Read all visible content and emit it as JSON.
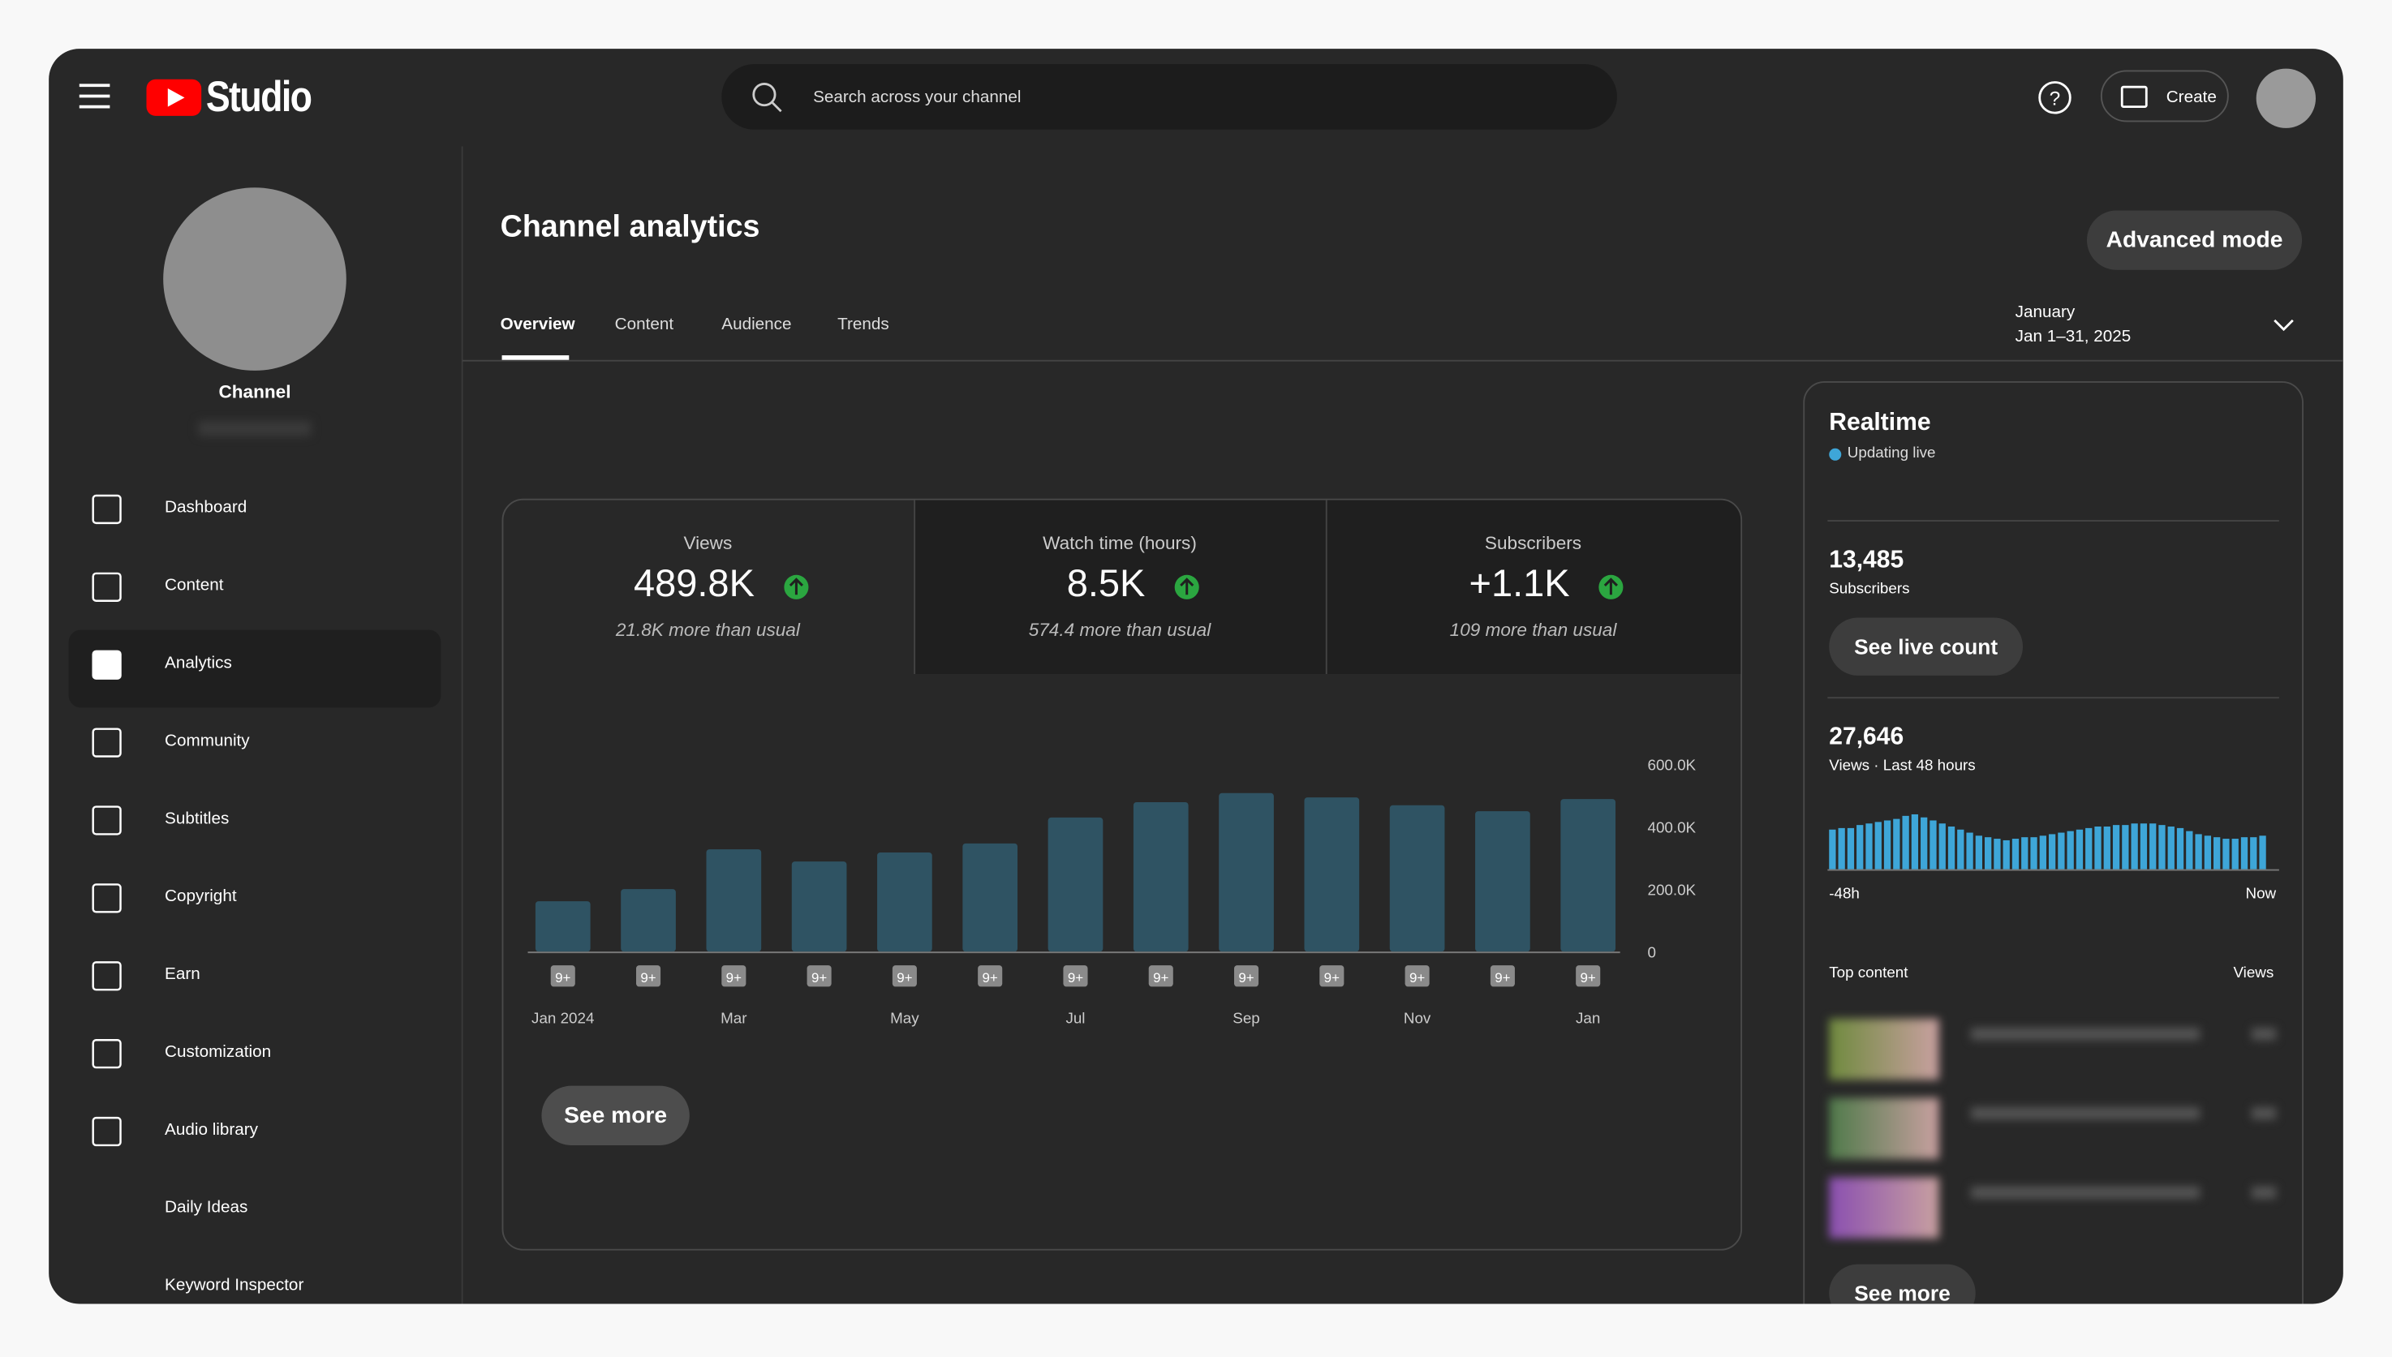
{
  "header": {
    "logo": "Studio",
    "search": "Search across your channel",
    "create": "Create"
  },
  "sidebar": {
    "channel": "Channel",
    "items": [
      "Dashboard",
      "Content",
      "Analytics",
      "Community",
      "Subtitles",
      "Copyright",
      "Earn",
      "Customization",
      "Audio library",
      "Daily Ideas",
      "Keyword Inspector"
    ]
  },
  "page": {
    "title": "Channel analytics",
    "advanced": "Advanced mode",
    "tabs": [
      "Overview",
      "Content",
      "Audience",
      "Trends"
    ],
    "period": {
      "label": "January",
      "range": "Jan 1–31, 2025"
    }
  },
  "metrics": [
    {
      "label": "Views",
      "value": "489.8K",
      "note": "21.8K more than usual"
    },
    {
      "label": "Watch time (hours)",
      "value": "8.5K",
      "note": "574.4 more than usual"
    },
    {
      "label": "Subscribers",
      "value": "+1.1K",
      "note": "109 more than usual"
    }
  ],
  "chart": {
    "type": "bar",
    "categories": [
      "Jan 2024",
      null,
      "Mar",
      null,
      "May",
      null,
      "Jul",
      null,
      "Sep",
      null,
      "Nov",
      null,
      "Jan"
    ],
    "values": [
      161000,
      200000,
      327000,
      288000,
      317000,
      346000,
      429000,
      478000,
      507000,
      493000,
      468000,
      449000,
      488000
    ],
    "badges": [
      "9+",
      "9+",
      "9+",
      "9+",
      "9+",
      "9+",
      "9+",
      "9+",
      "9+",
      "9+",
      "9+",
      "9+",
      "9+"
    ],
    "ylim": [
      0,
      600000
    ],
    "yticks": [
      0,
      {
        "value": 200000,
        "label": "200.0K"
      },
      {
        "value": 400000,
        "label": "400.0K"
      },
      {
        "value": 600000,
        "label": "600.0K"
      }
    ],
    "color": "#2f5363",
    "see_more": "See more"
  },
  "realtime": {
    "title": "Realtime",
    "status": "Updating live",
    "subscribers": {
      "value": "13,485",
      "label": "Subscribers"
    },
    "live_count": "See live count",
    "views": {
      "value": "27,646",
      "label": "Views · Last 48 hours"
    },
    "bars": [
      26,
      27,
      27,
      29,
      30,
      31,
      32,
      33,
      35,
      36,
      34,
      32,
      30,
      28,
      26,
      24,
      22,
      21,
      20,
      19,
      20,
      21,
      21,
      22,
      23,
      24,
      25,
      26,
      27,
      28,
      28,
      29,
      29,
      30,
      30,
      30,
      29,
      28,
      27,
      25,
      23,
      22,
      21,
      20,
      20,
      21,
      21,
      22
    ],
    "color": "#3ea6d8",
    "start": "-48h",
    "end": "Now",
    "top_content": "Top content",
    "views_col": "Views",
    "see_more": "See more"
  }
}
